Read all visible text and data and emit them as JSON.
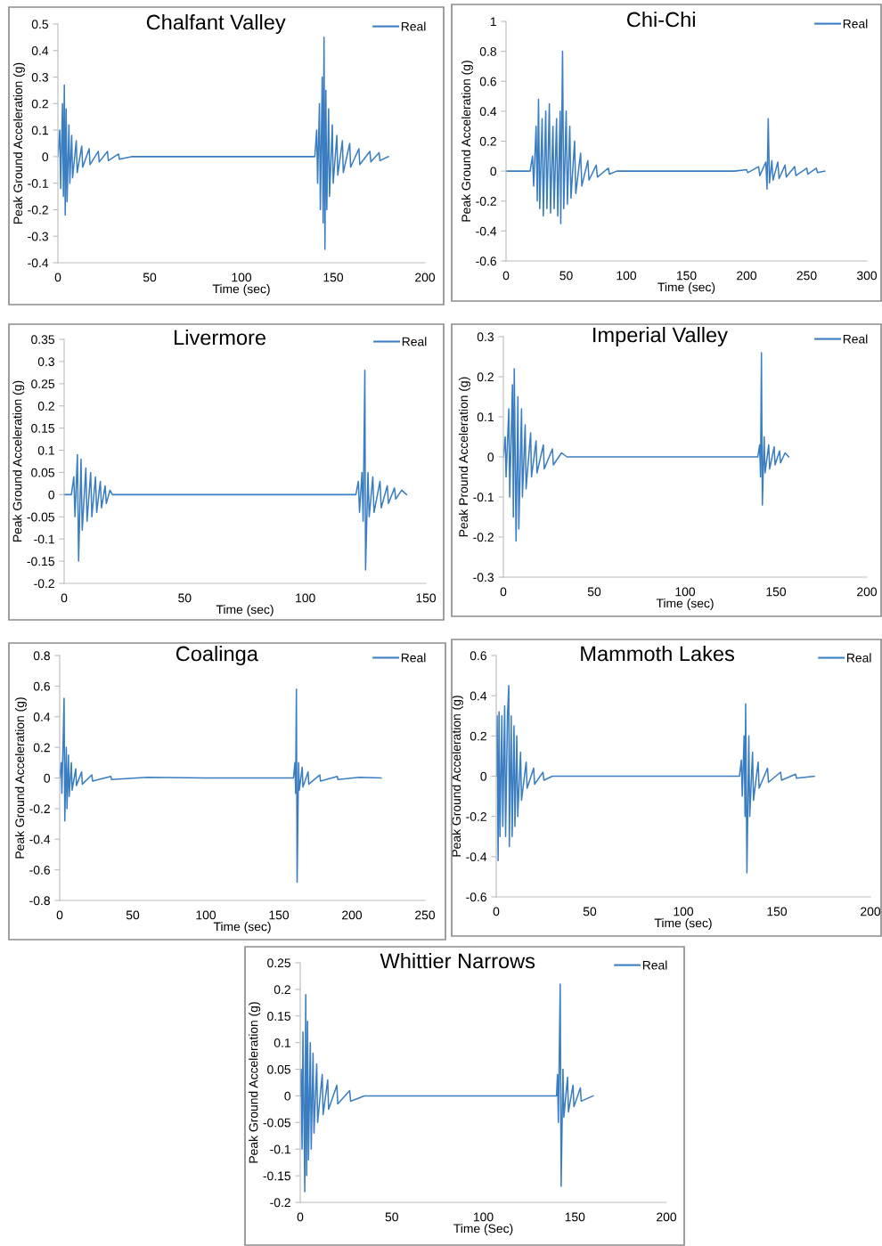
{
  "chart_data": [
    {
      "type": "line",
      "title": "Chalfant Valley",
      "xlabel": "Time (sec)",
      "ylabel": "Peak Ground Acceleration (g)",
      "xlim": [
        0,
        200
      ],
      "xticks": [
        0,
        50,
        100,
        150,
        200
      ],
      "ylim": [
        -0.4,
        0.5
      ],
      "yticks": [
        -0.4,
        -0.3,
        -0.2,
        -0.1,
        0,
        0.1,
        0.2,
        0.3,
        0.4,
        0.5
      ],
      "grid": false,
      "legend": "top right",
      "series": [
        {
          "name": "Real",
          "color": "#3a7dc1",
          "x": [
            0,
            1,
            1.5,
            2.5,
            3,
            3.5,
            4,
            4.5,
            5,
            6,
            6.5,
            7.5,
            8,
            10,
            10.5,
            13,
            13.5,
            17,
            17.5,
            22,
            22.5,
            27,
            27.5,
            33,
            33.5,
            40,
            140,
            141,
            141.5,
            142.5,
            143,
            144,
            144.5,
            145,
            145.5,
            146,
            146.5,
            147.5,
            148,
            149.5,
            150,
            152,
            152.5,
            155,
            155.5,
            159,
            159.5,
            164,
            164.5,
            170,
            170.5,
            175,
            175.5,
            180
          ],
          "values": [
            0,
            0.1,
            -0.12,
            0.2,
            -0.15,
            0.27,
            -0.22,
            0.18,
            -0.17,
            0.12,
            -0.1,
            0.08,
            -0.08,
            0.06,
            -0.06,
            0.04,
            -0.04,
            0.03,
            -0.03,
            0.02,
            -0.02,
            0.02,
            -0.015,
            0.01,
            -0.01,
            0,
            0,
            0.1,
            -0.1,
            0.2,
            -0.2,
            0.3,
            -0.25,
            0.45,
            -0.35,
            0.25,
            -0.2,
            0.18,
            -0.15,
            0.12,
            -0.1,
            0.08,
            -0.07,
            0.06,
            -0.06,
            0.05,
            -0.04,
            0.03,
            -0.03,
            0.02,
            -0.02,
            0.015,
            -0.015,
            0
          ]
        }
      ]
    },
    {
      "type": "line",
      "title": "Chi-Chi",
      "xlabel": "Time (sec)",
      "ylabel": "Peak Ground Acceleration (g)",
      "xlim": [
        0,
        300
      ],
      "xticks": [
        0,
        50,
        100,
        150,
        200,
        250,
        300
      ],
      "ylim": [
        -0.6,
        1
      ],
      "yticks": [
        -0.6,
        -0.4,
        -0.2,
        0,
        0.2,
        0.4,
        0.6,
        0.8,
        1
      ],
      "grid": false,
      "legend": "top right",
      "series": [
        {
          "name": "Real",
          "color": "#3a7dc1",
          "x": [
            0,
            20,
            22,
            23,
            25,
            26,
            27,
            28,
            30,
            31,
            33,
            34,
            36,
            37,
            39,
            40,
            42,
            43,
            45,
            45.5,
            47,
            48,
            50,
            51,
            53,
            54,
            57,
            58,
            62,
            63,
            68,
            69,
            75,
            76,
            85,
            86,
            92,
            190,
            200,
            201,
            210,
            211,
            216,
            217,
            218,
            219,
            221,
            222,
            226,
            227,
            232,
            233,
            240,
            241,
            250,
            251,
            258,
            259,
            265
          ],
          "values": [
            0,
            0,
            0.1,
            -0.1,
            0.3,
            -0.2,
            0.48,
            -0.25,
            0.35,
            -0.3,
            0.4,
            -0.25,
            0.45,
            -0.28,
            0.3,
            -0.25,
            0.35,
            -0.3,
            0.4,
            -0.35,
            0.8,
            -0.25,
            0.4,
            -0.22,
            0.3,
            -0.18,
            0.2,
            -0.15,
            0.12,
            -0.1,
            0.07,
            -0.06,
            0.04,
            -0.04,
            0.02,
            -0.02,
            0,
            0,
            0.01,
            -0.01,
            0.03,
            -0.03,
            0.06,
            -0.12,
            0.35,
            -0.08,
            0.07,
            -0.06,
            0.06,
            -0.05,
            0.04,
            -0.04,
            0.03,
            -0.03,
            0.02,
            -0.02,
            0.02,
            -0.01,
            0
          ]
        }
      ]
    },
    {
      "type": "line",
      "title": "Livermore",
      "xlabel": "Time (sec)",
      "ylabel": "Peak Ground Acceleration (g)",
      "xlim": [
        0,
        150
      ],
      "xticks": [
        0,
        50,
        100,
        150
      ],
      "ylim": [
        -0.2,
        0.35
      ],
      "yticks": [
        -0.2,
        -0.15,
        -0.1,
        -0.05,
        0,
        0.05,
        0.1,
        0.15,
        0.2,
        0.25,
        0.3,
        0.35
      ],
      "grid": false,
      "legend": "top right",
      "series": [
        {
          "name": "Real",
          "color": "#3a7dc1",
          "x": [
            0,
            3,
            4,
            4.5,
            5.5,
            6,
            7,
            7.5,
            9,
            9.5,
            11,
            11.5,
            13,
            13.5,
            15,
            15.5,
            17,
            17.5,
            19,
            20,
            121,
            122,
            122.5,
            123.5,
            124,
            124.7,
            125,
            126,
            126.5,
            128,
            128.5,
            131,
            131.5,
            134,
            134.5,
            137,
            137.5,
            140,
            142
          ],
          "values": [
            0,
            0,
            0.04,
            -0.05,
            0.09,
            -0.15,
            0.08,
            -0.08,
            0.06,
            -0.06,
            0.05,
            -0.05,
            0.04,
            -0.04,
            0.03,
            -0.03,
            0.02,
            -0.02,
            0.01,
            0,
            0,
            0.03,
            -0.04,
            0.05,
            -0.06,
            0.28,
            -0.17,
            0.05,
            -0.05,
            0.04,
            -0.04,
            0.03,
            -0.03,
            0.02,
            -0.02,
            0.015,
            -0.01,
            0.01,
            0
          ]
        }
      ]
    },
    {
      "type": "line",
      "title": "Imperial Valley",
      "xlabel": "Time (sec)",
      "ylabel": "Peak Pround Acceleration (g)",
      "xlim": [
        0,
        200
      ],
      "xticks": [
        0,
        50,
        100,
        150,
        200
      ],
      "ylim": [
        -0.3,
        0.3
      ],
      "yticks": [
        -0.3,
        -0.2,
        -0.1,
        0,
        0.1,
        0.2,
        0.3
      ],
      "grid": false,
      "legend": "top right",
      "series": [
        {
          "name": "Real",
          "color": "#3a7dc1",
          "x": [
            0,
            1,
            1.5,
            3,
            3.5,
            5,
            5.5,
            6,
            7,
            8,
            8.5,
            10,
            10.5,
            12,
            12.5,
            15,
            15.5,
            18,
            18.5,
            22,
            22.5,
            27,
            27.5,
            32,
            35,
            140,
            141,
            141.5,
            142,
            142.5,
            143.5,
            144,
            146,
            146.5,
            149,
            149.5,
            152,
            152.5,
            155,
            157
          ],
          "values": [
            0,
            0.05,
            -0.05,
            0.12,
            -0.1,
            0.18,
            -0.15,
            0.22,
            -0.21,
            0.15,
            -0.18,
            0.12,
            -0.1,
            0.08,
            -0.08,
            0.06,
            -0.05,
            0.04,
            -0.04,
            0.03,
            -0.03,
            0.02,
            -0.02,
            0.01,
            0,
            0,
            0.03,
            -0.05,
            0.26,
            -0.12,
            0.05,
            -0.04,
            0.03,
            -0.03,
            0.025,
            -0.02,
            0.015,
            -0.015,
            0.01,
            0
          ]
        }
      ]
    },
    {
      "type": "line",
      "title": "Coalinga",
      "xlabel": "Time (sec)",
      "ylabel": "Peak Ground Acceleration (g)",
      "xlim": [
        0,
        250
      ],
      "xticks": [
        0,
        50,
        100,
        150,
        200,
        250
      ],
      "ylim": [
        -0.8,
        0.8
      ],
      "yticks": [
        -0.8,
        -0.6,
        -0.4,
        -0.2,
        0,
        0.2,
        0.4,
        0.6,
        0.8
      ],
      "grid": false,
      "legend": "top right",
      "series": [
        {
          "name": "Real",
          "color": "#3a7dc1",
          "x": [
            0,
            1,
            1.5,
            2.5,
            3,
            3.5,
            4.5,
            5,
            6,
            6.5,
            8,
            8.5,
            11,
            11.5,
            15,
            15.5,
            22,
            22.5,
            35,
            35.5,
            60,
            100,
            160,
            161,
            161.5,
            162,
            162.5,
            163.5,
            164,
            166,
            166.5,
            170,
            170.5,
            178,
            178.5,
            190,
            190.5,
            205,
            220
          ],
          "values": [
            0,
            0.1,
            -0.1,
            0.3,
            0.52,
            -0.28,
            0.2,
            -0.2,
            0.15,
            -0.12,
            0.1,
            -0.08,
            0.06,
            -0.05,
            0.04,
            -0.04,
            0.02,
            -0.02,
            0.01,
            -0.01,
            0.005,
            0,
            0,
            0.1,
            -0.1,
            0.58,
            -0.68,
            0.1,
            -0.08,
            0.07,
            -0.06,
            0.04,
            -0.04,
            0.02,
            -0.02,
            0.01,
            -0.01,
            0.005,
            0
          ]
        }
      ]
    },
    {
      "type": "line",
      "title": "Mammoth Lakes",
      "xlabel": "Time (sec)",
      "ylabel": "Peak Ground Acceleration (g)",
      "xlim": [
        0,
        200
      ],
      "xticks": [
        0,
        50,
        100,
        150,
        200
      ],
      "ylim": [
        -0.6,
        0.6
      ],
      "yticks": [
        -0.6,
        -0.4,
        -0.2,
        0,
        0.2,
        0.4,
        0.6
      ],
      "grid": false,
      "legend": "top right",
      "series": [
        {
          "name": "Real",
          "color": "#3a7dc1",
          "x": [
            0,
            0.5,
            1,
            1.5,
            2,
            3,
            3.5,
            4.5,
            5,
            6,
            6.7,
            7,
            8,
            8.5,
            9.5,
            10,
            11,
            11.5,
            13,
            13.5,
            16,
            16.5,
            20,
            20.5,
            25,
            25.5,
            30,
            130,
            131,
            131.5,
            132.5,
            133,
            133.3,
            134,
            135,
            135.5,
            137,
            137.5,
            140,
            140.5,
            145,
            145.5,
            152,
            152.5,
            160,
            160.5,
            170
          ],
          "values": [
            0,
            0.3,
            -0.42,
            0.32,
            -0.3,
            0.3,
            -0.25,
            0.35,
            -0.3,
            0.3,
            0.45,
            -0.35,
            0.3,
            -0.3,
            0.25,
            -0.25,
            0.2,
            -0.2,
            0.12,
            -0.12,
            0.07,
            -0.06,
            0.04,
            -0.04,
            0.02,
            -0.02,
            0,
            0,
            0.08,
            -0.1,
            0.2,
            -0.2,
            0.36,
            -0.48,
            0.2,
            -0.2,
            0.12,
            -0.12,
            0.07,
            -0.06,
            0.04,
            -0.03,
            0.02,
            -0.02,
            0.01,
            -0.01,
            0
          ]
        }
      ]
    },
    {
      "type": "line",
      "title": "Whittier Narrows",
      "xlabel": "Time (Sec)",
      "ylabel": "Peak Ground Acceleration (g)",
      "xlim": [
        0,
        200
      ],
      "xticks": [
        0,
        50,
        100,
        150,
        200
      ],
      "ylim": [
        -0.2,
        0.25
      ],
      "yticks": [
        -0.2,
        -0.15,
        -0.1,
        -0.05,
        0,
        0.05,
        0.1,
        0.15,
        0.2,
        0.25
      ],
      "grid": false,
      "legend": "top right",
      "series": [
        {
          "name": "Real",
          "color": "#3a7dc1",
          "x": [
            0,
            0.5,
            1,
            1.5,
            2.5,
            3,
            3.5,
            4,
            4.5,
            5.5,
            6,
            7,
            7.5,
            9,
            9.5,
            12,
            12.5,
            15,
            15.5,
            20,
            20.5,
            27,
            27.5,
            35,
            140,
            140.5,
            141,
            142,
            142.5,
            143.5,
            144,
            146,
            146.5,
            149,
            149.5,
            153,
            153.5,
            160
          ],
          "values": [
            0,
            0.05,
            -0.1,
            0.12,
            -0.18,
            0.19,
            -0.15,
            0.14,
            -0.12,
            0.1,
            -0.1,
            0.08,
            -0.07,
            0.06,
            -0.05,
            0.04,
            -0.035,
            0.03,
            -0.025,
            0.02,
            -0.015,
            0.01,
            -0.01,
            0,
            0,
            0.04,
            -0.05,
            0.21,
            -0.17,
            0.05,
            -0.04,
            0.035,
            -0.03,
            0.02,
            -0.02,
            0.015,
            -0.01,
            0
          ]
        }
      ]
    }
  ]
}
